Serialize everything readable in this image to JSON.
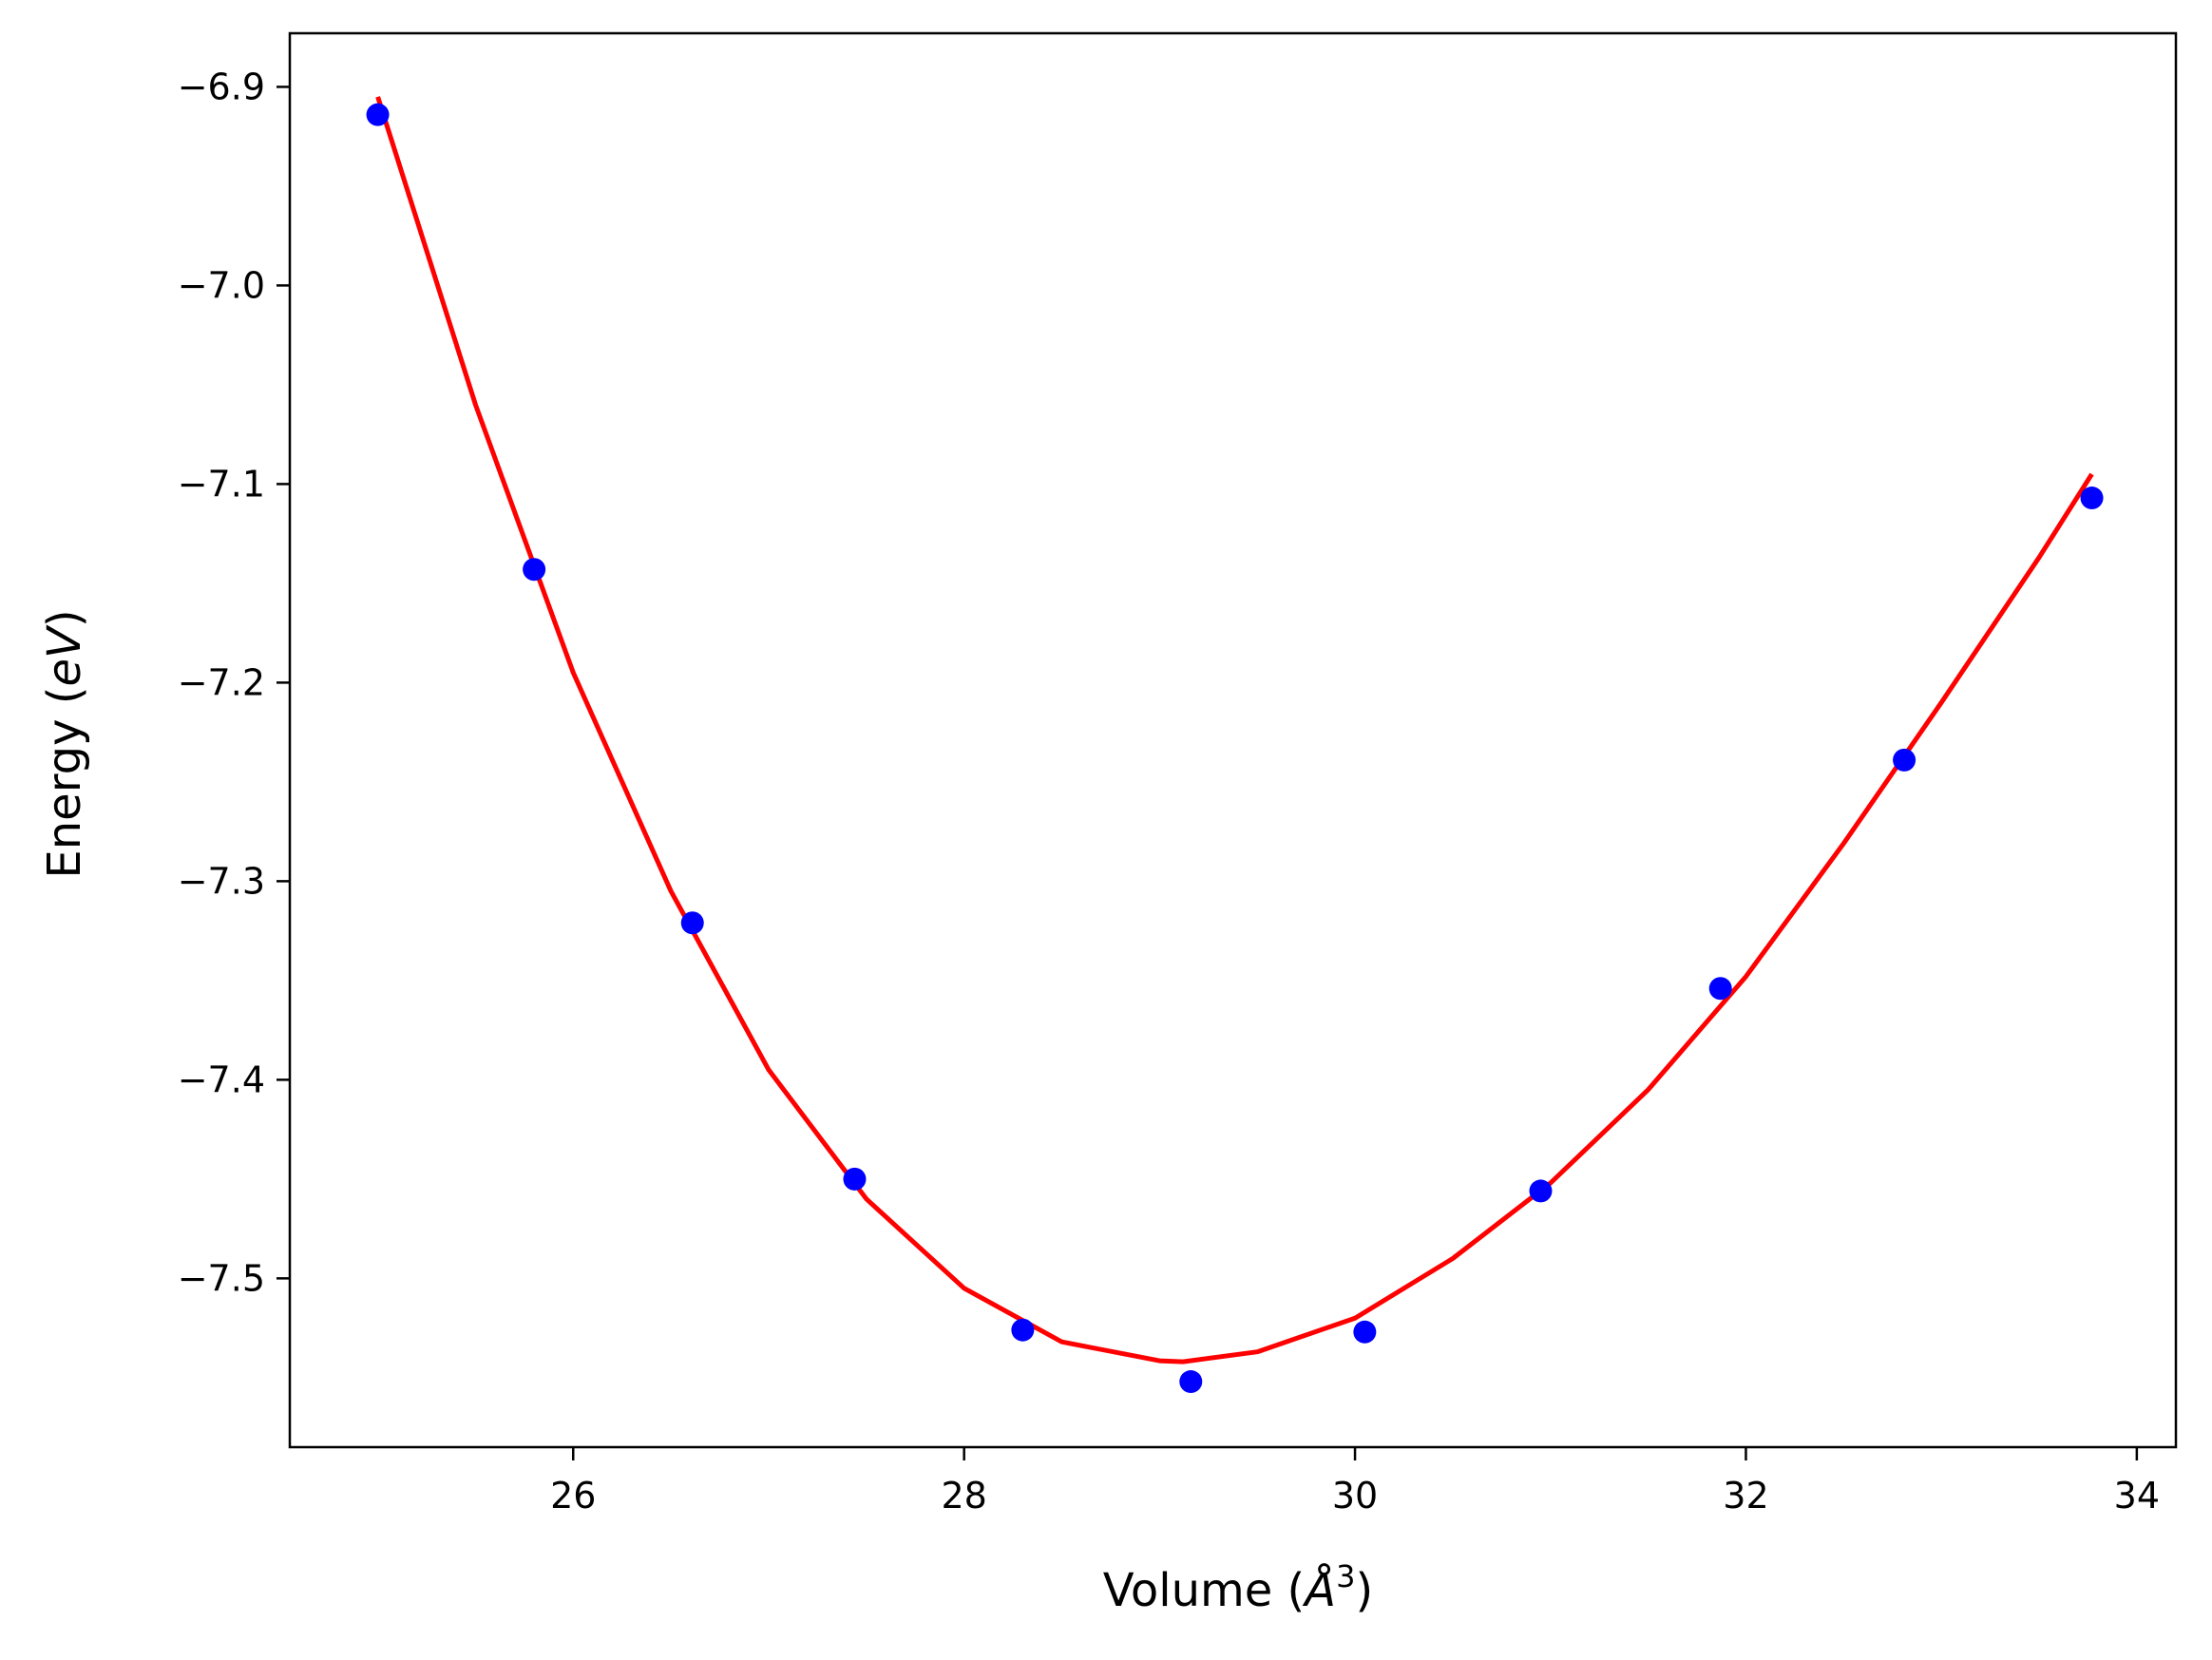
{
  "chart_data": {
    "type": "scatter",
    "title": "",
    "xlabel": {
      "prefix": "Volume (",
      "symbol": "Å",
      "superscript": "3",
      "suffix": ")"
    },
    "ylabel": {
      "prefix": "Energy (",
      "unit": "eV",
      "suffix": ")"
    },
    "xlim": [
      24.55,
      34.2
    ],
    "ylim": [
      -7.585,
      -6.873
    ],
    "xticks": [
      26,
      28,
      30,
      32,
      34
    ],
    "xtick_labels": [
      "26",
      "28",
      "30",
      "32",
      "34"
    ],
    "yticks": [
      -6.9,
      -7.0,
      -7.1,
      -7.2,
      -7.3,
      -7.4,
      -7.5
    ],
    "ytick_labels": [
      "−6.9",
      "−7.0",
      "−7.1",
      "−7.2",
      "−7.3",
      "−7.4",
      "−7.5"
    ],
    "grid": false,
    "series": [
      {
        "kind": "points",
        "color": "#0000ff",
        "x": [
          25.0,
          25.8,
          26.61,
          27.44,
          28.3,
          29.16,
          30.05,
          30.95,
          31.87,
          32.81,
          33.77
        ],
        "y": [
          -6.914,
          -7.143,
          -7.321,
          -7.45,
          -7.526,
          -7.552,
          -7.527,
          -7.456,
          -7.354,
          -7.239,
          -7.107
        ]
      },
      {
        "kind": "fit-curve",
        "color": "#ff0000",
        "x": [
          25.0,
          25.5,
          26.0,
          26.5,
          27.0,
          27.5,
          28.0,
          28.5,
          29.0,
          29.12,
          29.5,
          30.0,
          30.5,
          31.0,
          31.5,
          32.0,
          32.5,
          33.0,
          33.5,
          33.77
        ],
        "y": [
          -6.905,
          -7.06,
          -7.195,
          -7.305,
          -7.395,
          -7.46,
          -7.505,
          -7.532,
          -7.5415,
          -7.542,
          -7.537,
          -7.52,
          -7.49,
          -7.452,
          -7.405,
          -7.348,
          -7.281,
          -7.21,
          -7.137,
          -7.095
        ]
      }
    ]
  }
}
